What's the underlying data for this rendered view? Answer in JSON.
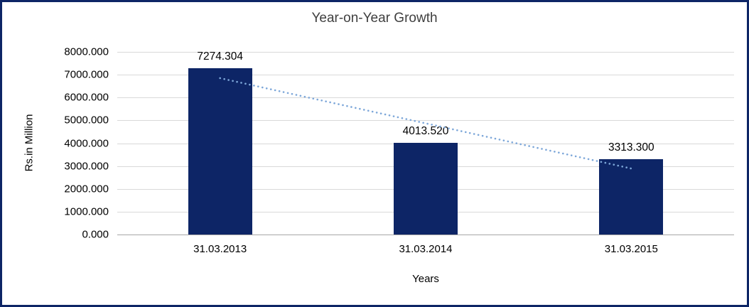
{
  "chart_data": {
    "type": "bar",
    "title": "Year-on-Year Growth",
    "xlabel": "Years",
    "ylabel": "Rs.in Million",
    "categories": [
      "31.03.2013",
      "31.03.2014",
      "31.03.2015"
    ],
    "values": [
      7274.304,
      4013.52,
      3313.3
    ],
    "data_labels": [
      "7274.304",
      "4013.520",
      "3313.300"
    ],
    "ylim": [
      0,
      8000
    ],
    "ytick_step": 1000,
    "ytick_labels": [
      "0.000",
      "1000.000",
      "2000.000",
      "3000.000",
      "4000.000",
      "5000.000",
      "6000.000",
      "7000.000",
      "8000.000"
    ],
    "grid": true,
    "legend": "none",
    "bar_color": "#0d2566",
    "frame_border_color": "#0d2566",
    "trendline": {
      "style": "dotted",
      "color": "#7da7d9",
      "start_value": 6850,
      "end_value": 2890
    }
  }
}
